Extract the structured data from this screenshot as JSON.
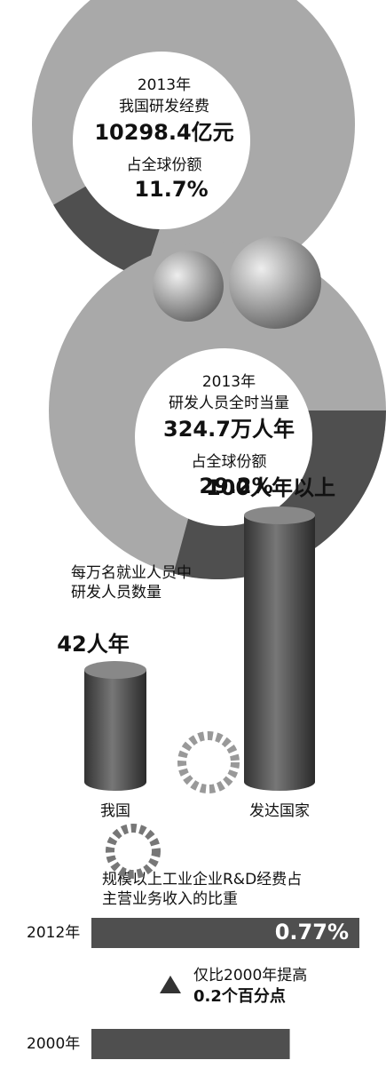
{
  "chart_data": [
    {
      "type": "pie",
      "lines": [
        "2013年",
        "我国研发经费",
        "10298.4亿元",
        "占全球份额"
      ],
      "values": [
        11.7
      ],
      "value_labels": [
        "11.7%"
      ]
    },
    {
      "type": "pie",
      "lines": [
        "2013年",
        "研发人员全时当量",
        "324.7万人年",
        "占全球份额"
      ],
      "values": [
        29.2
      ],
      "value_labels": [
        "29.2%"
      ]
    },
    {
      "type": "bar",
      "title": [
        "每万名就业人员中",
        "研发人员数量"
      ],
      "categories": [
        "我国",
        "发达国家"
      ],
      "values": [
        42,
        100
      ],
      "value_labels": [
        "42人年",
        "100人年以上"
      ]
    },
    {
      "type": "barh",
      "title": [
        "规模以上工业企业R&D经费占",
        "主营业务收入的比重"
      ],
      "categories": [
        "2012年",
        "2000年"
      ],
      "values": [
        0.77,
        0.57
      ],
      "value_labels": [
        "0.77%",
        null
      ],
      "annotation": [
        "仅比2000年提高",
        "0.2个百分点"
      ]
    }
  ]
}
